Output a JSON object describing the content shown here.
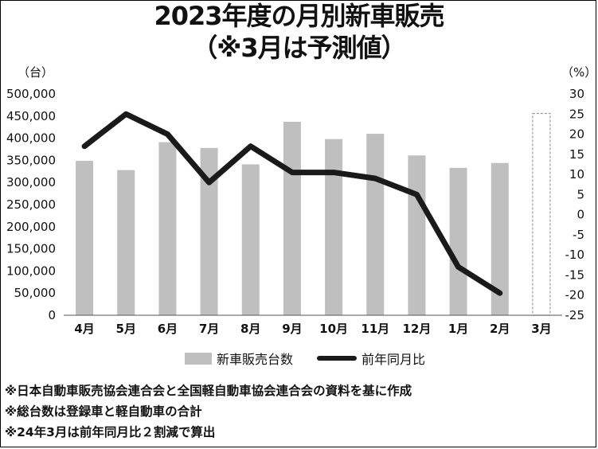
{
  "title_line1": "2023年度の月別新車販売",
  "title_line2": "（※3月は予測値）",
  "chart_data": {
    "type": "bar",
    "categories": [
      "4月",
      "5月",
      "6月",
      "7月",
      "8月",
      "9月",
      "10月",
      "11月",
      "12月",
      "1月",
      "2月",
      "3月"
    ],
    "series": [
      {
        "name": "新車販売台数",
        "type": "bar",
        "axis": "left",
        "values": [
          349000,
          328000,
          391000,
          378000,
          341000,
          437000,
          398000,
          410000,
          361000,
          333000,
          344000,
          456000
        ],
        "estimated": [
          false,
          false,
          false,
          false,
          false,
          false,
          false,
          false,
          false,
          false,
          false,
          true
        ],
        "color": "#bfbfbf"
      },
      {
        "name": "前年同月比",
        "type": "line",
        "axis": "right",
        "values": [
          17,
          25,
          20,
          8,
          17,
          10.5,
          10.5,
          9,
          5,
          -13,
          -19.5,
          null
        ],
        "color": "#1a1a1a"
      }
    ],
    "left_axis": {
      "unit": "（台）",
      "ylim": [
        0,
        500000
      ],
      "ticks": [
        "0",
        "50,000",
        "100,000",
        "150,000",
        "200,000",
        "250,000",
        "300,000",
        "350,000",
        "400,000",
        "450,000",
        "500,000"
      ]
    },
    "right_axis": {
      "unit": "（%）",
      "ylim": [
        -25,
        30
      ],
      "ticks": [
        "-25",
        "-20",
        "-15",
        "-10",
        "-5",
        "0",
        "5",
        "10",
        "15",
        "20",
        "25",
        "30"
      ]
    },
    "grid": false,
    "legend": "bottom-center"
  },
  "legend": {
    "bar_label": "新車販売台数",
    "line_label": "前年同月比"
  },
  "notes": [
    "※日本自動車販売協会連合会と全国軽自動車協会連合会の資料を基に作成",
    "※総台数は登録車と軽自動車の合計",
    "※24年3月は前年同月比２割減で算出"
  ]
}
